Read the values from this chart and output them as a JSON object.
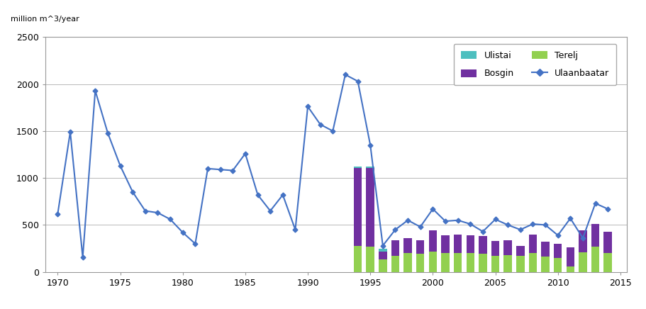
{
  "ylabel": "million m^3/year",
  "ylim": [
    0,
    2500
  ],
  "xlim": [
    1969.0,
    2015.5
  ],
  "yticks": [
    0,
    500,
    1000,
    1500,
    2000,
    2500
  ],
  "xticks": [
    1970,
    1975,
    1980,
    1985,
    1990,
    1995,
    2000,
    2005,
    2010,
    2015
  ],
  "ulaanbaatar_years": [
    1970,
    1971,
    1972,
    1973,
    1974,
    1975,
    1976,
    1977,
    1978,
    1979,
    1980,
    1981,
    1982,
    1983,
    1984,
    1985,
    1986,
    1987,
    1988,
    1989,
    1990,
    1991,
    1992,
    1993,
    1994,
    1995,
    1996,
    1997,
    1998,
    1999,
    2000,
    2001,
    2002,
    2003,
    2004,
    2005,
    2006,
    2007,
    2008,
    2009,
    2010,
    2011,
    2012,
    2013,
    2014
  ],
  "ulaanbaatar_values": [
    620,
    1490,
    155,
    1930,
    1480,
    1130,
    850,
    650,
    630,
    560,
    420,
    300,
    1100,
    1090,
    1080,
    1260,
    820,
    650,
    820,
    450,
    1760,
    1570,
    1500,
    2100,
    2030,
    1350,
    280,
    450,
    550,
    480,
    670,
    540,
    550,
    510,
    430,
    560,
    500,
    450,
    510,
    500,
    390,
    570,
    360,
    730,
    670
  ],
  "bar_years": [
    1994,
    1995,
    1996,
    1997,
    1998,
    1999,
    2000,
    2001,
    2002,
    2003,
    2004,
    2005,
    2006,
    2007,
    2008,
    2009,
    2010,
    2011,
    2012,
    2013,
    2014
  ],
  "terelj": [
    280,
    270,
    130,
    170,
    200,
    190,
    220,
    200,
    200,
    200,
    190,
    170,
    180,
    170,
    200,
    160,
    150,
    60,
    210,
    270,
    200
  ],
  "bosgin": [
    830,
    840,
    90,
    170,
    160,
    150,
    220,
    190,
    200,
    190,
    190,
    160,
    160,
    110,
    200,
    160,
    150,
    200,
    230,
    240,
    230
  ],
  "ulistai": [
    10,
    10,
    30,
    0,
    0,
    0,
    0,
    0,
    0,
    0,
    0,
    0,
    0,
    0,
    0,
    0,
    0,
    0,
    0,
    0,
    0
  ],
  "color_ulistai": "#4dbfbf",
  "color_bosgin": "#7030a0",
  "color_terelj": "#92d050",
  "color_ulaanbaatar": "#4472c4",
  "background_color": "#ffffff",
  "border_color": "#999999",
  "grid_color": "#b8b8b8",
  "legend_labels": [
    "Ulistai",
    "Bosgin",
    "Terelj",
    "Ulaanbaatar"
  ],
  "bar_width": 0.65
}
